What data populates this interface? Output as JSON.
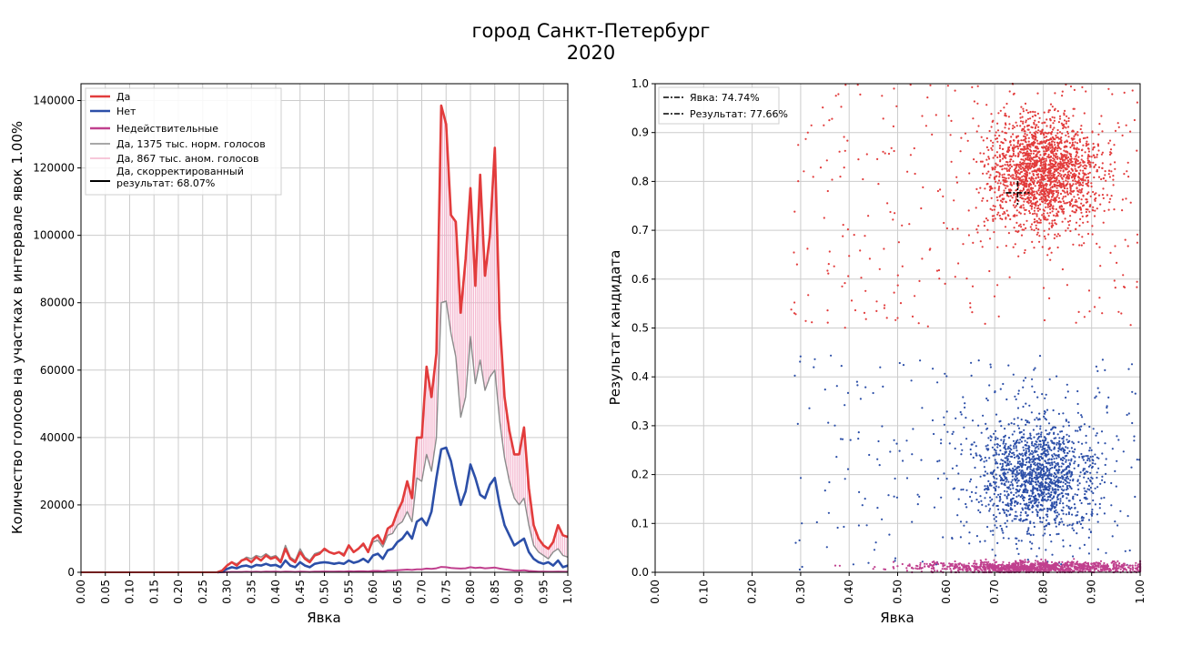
{
  "figure": {
    "title_line1": "город Санкт-Петербург",
    "title_line2": "2020"
  },
  "chart_data": [
    {
      "type": "line",
      "xlabel": "Явка",
      "ylabel": "Количество голосов на участках в интервале явок 1.00%",
      "xlim": [
        0.0,
        1.0
      ],
      "ylim": [
        0,
        145000
      ],
      "grid": true,
      "legend_position": "top-left",
      "xticks": [
        "0.00",
        "0.05",
        "0.10",
        "0.15",
        "0.20",
        "0.25",
        "0.30",
        "0.35",
        "0.40",
        "0.45",
        "0.50",
        "0.55",
        "0.60",
        "0.65",
        "0.70",
        "0.75",
        "0.80",
        "0.85",
        "0.90",
        "0.95",
        "1.00"
      ],
      "yticks": [
        "0",
        "20000",
        "40000",
        "60000",
        "80000",
        "100000",
        "120000",
        "140000"
      ],
      "x": [
        0.28,
        0.29,
        0.3,
        0.31,
        0.32,
        0.33,
        0.34,
        0.35,
        0.36,
        0.37,
        0.38,
        0.39,
        0.4,
        0.41,
        0.42,
        0.43,
        0.44,
        0.45,
        0.46,
        0.47,
        0.48,
        0.49,
        0.5,
        0.51,
        0.52,
        0.53,
        0.54,
        0.55,
        0.56,
        0.57,
        0.58,
        0.59,
        0.6,
        0.61,
        0.62,
        0.63,
        0.64,
        0.65,
        0.66,
        0.67,
        0.68,
        0.69,
        0.7,
        0.71,
        0.72,
        0.73,
        0.74,
        0.75,
        0.76,
        0.77,
        0.78,
        0.79,
        0.8,
        0.81,
        0.82,
        0.83,
        0.84,
        0.85,
        0.86,
        0.87,
        0.88,
        0.89,
        0.9,
        0.91,
        0.92,
        0.93,
        0.94,
        0.95,
        0.96,
        0.97,
        0.98,
        0.99,
        1.0
      ],
      "series": [
        {
          "name": "Да",
          "color": "#e23c3c",
          "values": [
            0,
            500,
            2000,
            3000,
            2000,
            3500,
            4000,
            3000,
            4500,
            3500,
            5000,
            4000,
            4500,
            3000,
            7000,
            4000,
            3000,
            6000,
            4000,
            3000,
            5000,
            5500,
            7000,
            6000,
            5500,
            6000,
            5000,
            8000,
            6000,
            7000,
            8500,
            6000,
            10000,
            11000,
            8500,
            13000,
            14000,
            18000,
            21000,
            27000,
            22000,
            40000,
            40000,
            61000,
            52000,
            65000,
            138500,
            133000,
            106000,
            104000,
            77000,
            93000,
            114000,
            85000,
            118000,
            88000,
            100000,
            126000,
            75000,
            52000,
            42000,
            35000,
            35000,
            43000,
            25000,
            14000,
            10000,
            8000,
            7000,
            9000,
            14000,
            11000,
            10500
          ]
        },
        {
          "name": "Нет",
          "color": "#2c4fa8",
          "values": [
            0,
            200,
            1000,
            1500,
            1200,
            1800,
            2000,
            1500,
            2200,
            2000,
            2500,
            2000,
            2200,
            1500,
            3500,
            2000,
            1500,
            3000,
            2000,
            1500,
            2500,
            2800,
            3000,
            2800,
            2500,
            2800,
            2500,
            3500,
            2800,
            3200,
            4000,
            3000,
            5000,
            5500,
            4000,
            6500,
            7000,
            9000,
            10000,
            12000,
            10000,
            15000,
            16000,
            14000,
            18000,
            28000,
            36500,
            37000,
            33000,
            26000,
            20000,
            24000,
            32000,
            28000,
            23000,
            22000,
            26000,
            28000,
            20000,
            14000,
            11000,
            8000,
            9000,
            10000,
            6000,
            4000,
            3000,
            2500,
            3000,
            2000,
            3500,
            1500,
            2000
          ]
        },
        {
          "name": "Недействительные",
          "color": "#c0408e",
          "values": [
            0,
            0,
            50,
            100,
            100,
            100,
            150,
            100,
            150,
            100,
            200,
            150,
            200,
            100,
            200,
            150,
            100,
            200,
            150,
            100,
            200,
            200,
            250,
            200,
            200,
            250,
            200,
            300,
            250,
            300,
            300,
            250,
            400,
            400,
            300,
            500,
            500,
            600,
            700,
            800,
            700,
            900,
            900,
            1100,
            1000,
            1200,
            1600,
            1500,
            1300,
            1200,
            1100,
            1200,
            1500,
            1300,
            1400,
            1200,
            1300,
            1400,
            1100,
            900,
            700,
            500,
            500,
            600,
            400,
            300,
            200,
            200,
            150,
            150,
            200,
            150,
            150
          ]
        },
        {
          "name": "Да, 1375 тыс. норм. голосов",
          "color": "#8c8c8c",
          "values": [
            0,
            500,
            2000,
            3000,
            2500,
            3500,
            4500,
            4000,
            5000,
            4500,
            5500,
            4500,
            5000,
            3500,
            8000,
            4500,
            3500,
            7000,
            4500,
            3500,
            5500,
            6000,
            6500,
            6000,
            5500,
            6000,
            5500,
            7500,
            6000,
            7000,
            8000,
            6000,
            9000,
            9500,
            7500,
            11000,
            11500,
            14000,
            15000,
            18000,
            15000,
            28000,
            27000,
            35000,
            30000,
            40000,
            80000,
            80500,
            71000,
            64000,
            46000,
            52000,
            70000,
            56000,
            63000,
            54000,
            58000,
            60000,
            45000,
            34000,
            27000,
            22000,
            20000,
            22000,
            14000,
            8000,
            6000,
            5000,
            4000,
            6000,
            7000,
            5000,
            4500
          ]
        }
      ],
      "legend": [
        "Да",
        "Нет",
        "Недействительные",
        "Да, 1375 тыс. норм. голосов",
        "Да, 867 тыс. аном. голосов",
        "Да, скорректированный результат: 68.07%"
      ]
    },
    {
      "type": "scatter",
      "xlabel": "Явка",
      "ylabel": "Результат кандидата",
      "xlim": [
        0.0,
        1.0
      ],
      "ylim": [
        0.0,
        1.0
      ],
      "grid": true,
      "legend_position": "top-left",
      "xticks": [
        "0.00",
        "0.10",
        "0.20",
        "0.30",
        "0.40",
        "0.50",
        "0.60",
        "0.70",
        "0.80",
        "0.90",
        "1.00"
      ],
      "yticks": [
        "0.0",
        "0.1",
        "0.2",
        "0.3",
        "0.4",
        "0.5",
        "0.6",
        "0.7",
        "0.8",
        "0.9",
        "1.0"
      ],
      "legend": [
        "Явка: 74.74%",
        "Результат: 77.66%"
      ],
      "turnout": 0.7474,
      "result": 0.7766,
      "clusters": [
        {
          "name": "Да",
          "color": "#e23c3c",
          "n": 1900,
          "spread_n": 280,
          "center": [
            0.8,
            0.82
          ],
          "sd": [
            0.06,
            0.06
          ],
          "x_range": [
            0.28,
            1.0
          ],
          "y_range": [
            0.5,
            1.0
          ]
        },
        {
          "name": "Нет",
          "color": "#2c4fa8",
          "n": 1500,
          "spread_n": 260,
          "center": [
            0.79,
            0.2
          ],
          "sd": [
            0.06,
            0.06
          ],
          "x_range": [
            0.28,
            1.0
          ],
          "y_range": [
            0.0,
            0.45
          ]
        },
        {
          "name": "Недействительные",
          "color": "#c0408e",
          "n": 1200,
          "spread_n": 0,
          "center": [
            0.78,
            0.01
          ],
          "sd": [
            0.12,
            0.006
          ],
          "x_range": [
            0.28,
            1.0
          ],
          "y_range": [
            0.0,
            0.03
          ]
        }
      ]
    }
  ]
}
